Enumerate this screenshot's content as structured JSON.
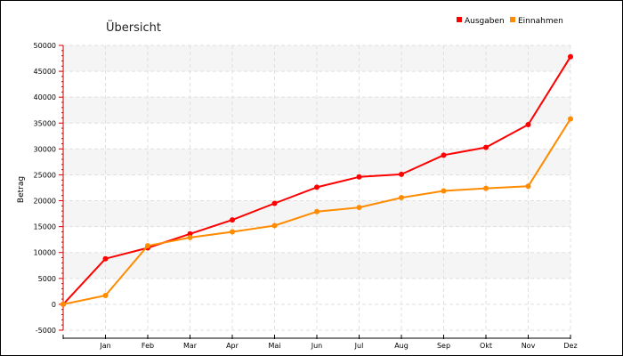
{
  "chart_data": {
    "type": "line",
    "title": "Übersicht",
    "ylabel": "Betrag",
    "xlabel": "",
    "categories": [
      "",
      "Jan",
      "Feb",
      "Mar",
      "Apr",
      "Mai",
      "Jun",
      "Jul",
      "Aug",
      "Sep",
      "Okt",
      "Nov",
      "Dez"
    ],
    "ylim": [
      -5000,
      50000
    ],
    "yticks": [
      -5000,
      0,
      5000,
      10000,
      15000,
      20000,
      25000,
      30000,
      35000,
      40000,
      45000,
      50000
    ],
    "grid": true,
    "legend_position": "top-right",
    "series": [
      {
        "name": "Ausgaben",
        "color": "#ff0000",
        "values": [
          0,
          8800,
          10900,
          13600,
          16300,
          19500,
          22600,
          24600,
          25100,
          28800,
          30300,
          34700,
          47800
        ]
      },
      {
        "name": "Einnahmen",
        "color": "#ff8c00",
        "values": [
          0,
          1700,
          11300,
          12900,
          14000,
          15200,
          17900,
          18700,
          20600,
          21900,
          22400,
          22800,
          35800
        ]
      }
    ]
  }
}
